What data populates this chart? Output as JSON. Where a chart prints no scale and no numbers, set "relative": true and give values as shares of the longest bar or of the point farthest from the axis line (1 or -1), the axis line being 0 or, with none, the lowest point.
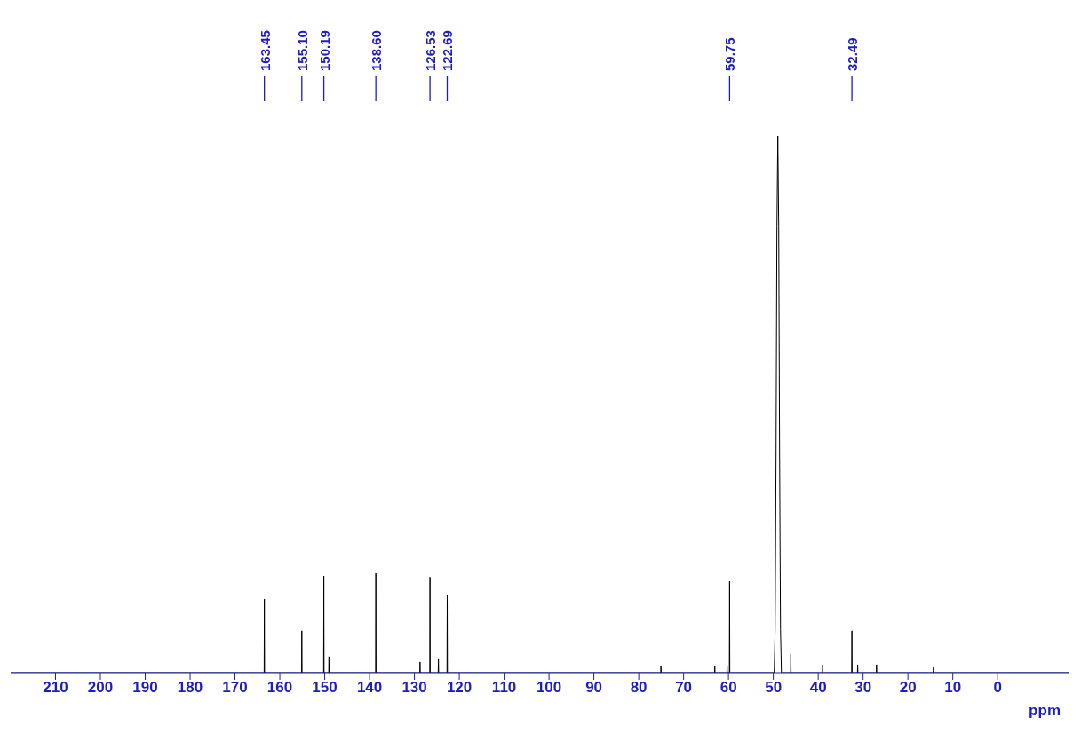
{
  "chart_data": {
    "type": "line",
    "relative": true,
    "xlabel": "ppm",
    "xlim": [
      220,
      -16
    ],
    "xticks": [
      210,
      200,
      190,
      180,
      170,
      160,
      150,
      140,
      130,
      120,
      110,
      100,
      90,
      80,
      70,
      60,
      50,
      40,
      30,
      20,
      10,
      0
    ],
    "grid": false,
    "legend": false,
    "marker": "none",
    "line_style": "solid",
    "series": [
      {
        "color": "#000000",
        "x": [
          220,
          163.5,
          163.45,
          163.4,
          155.15,
          155.1,
          155.05,
          150.24,
          150.19,
          150.14,
          149.1,
          149.05,
          149.0,
          138.65,
          138.6,
          138.55,
          128.8,
          128.75,
          128.7,
          126.58,
          126.53,
          126.48,
          124.7,
          124.65,
          124.6,
          122.74,
          122.69,
          122.64,
          75.1,
          75.05,
          75.0,
          63.1,
          63.05,
          63.0,
          60.35,
          60.3,
          60.25,
          59.8,
          59.75,
          59.7,
          49.8,
          49.6,
          49.4,
          49.2,
          49.0,
          48.8,
          48.6,
          48.4,
          48.2,
          46.15,
          46.1,
          46.05,
          39.05,
          39.0,
          38.95,
          32.54,
          32.49,
          32.44,
          31.25,
          31.2,
          31.15,
          27.05,
          27.0,
          26.95,
          14.35,
          14.3,
          14.25,
          -16
        ],
        "values": [
          0,
          0,
          0.137,
          0,
          0,
          0.078,
          0,
          0,
          0.18,
          0,
          0,
          0.03,
          0,
          0,
          0.185,
          0,
          0,
          0.02,
          0,
          0,
          0.178,
          0,
          0,
          0.025,
          0,
          0,
          0.145,
          0,
          0,
          0.012,
          0,
          0,
          0.013,
          0,
          0,
          0.013,
          0,
          0,
          0.17,
          0,
          0,
          0.08,
          0.4,
          0.83,
          1,
          0.83,
          0.4,
          0.08,
          0,
          0,
          0.035,
          0,
          0,
          0.015,
          0,
          0,
          0.078,
          0,
          0,
          0.015,
          0,
          0,
          0.015,
          0,
          0,
          0.01,
          0,
          0
        ]
      }
    ],
    "annotations": [
      {
        "text": "163.45",
        "x": 163.45
      },
      {
        "text": "155.10",
        "x": 155.1
      },
      {
        "text": "150.19",
        "x": 150.19
      },
      {
        "text": "138.60",
        "x": 138.6
      },
      {
        "text": "126.53",
        "x": 126.53
      },
      {
        "text": "122.69",
        "x": 122.69
      },
      {
        "text": "59.75",
        "x": 59.75
      },
      {
        "text": "32.49",
        "x": 32.49
      }
    ]
  }
}
